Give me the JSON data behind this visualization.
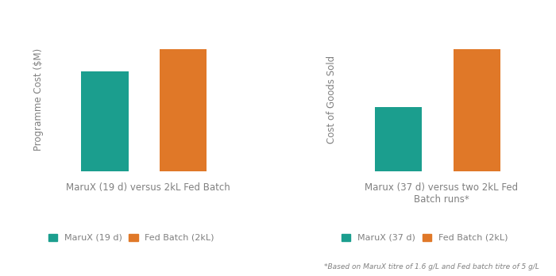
{
  "chart1": {
    "title": "MaruX (19 d) versus 2kL Fed Batch",
    "ylabel": "Programme Cost ($M)",
    "bars": [
      0.72,
      0.88
    ],
    "colors": [
      "#1B9E8E",
      "#E07828"
    ],
    "legend": [
      "MaruX (19 d)",
      "Fed Batch (2kL)"
    ]
  },
  "chart2": {
    "title": "Marux (37 d) versus two 2kL Fed\nBatch runs*",
    "ylabel": "Cost of Goods Sold",
    "bars": [
      0.5,
      0.95
    ],
    "colors": [
      "#1B9E8E",
      "#E07828"
    ],
    "legend": [
      "MaruX (37 d)",
      "Fed Batch (2kL)"
    ]
  },
  "footnote": "*Based on MaruX titre of 1.6 g/L and Fed batch titre of 5 g/L",
  "bg_color": "#FFFFFF",
  "text_color": "#808080"
}
